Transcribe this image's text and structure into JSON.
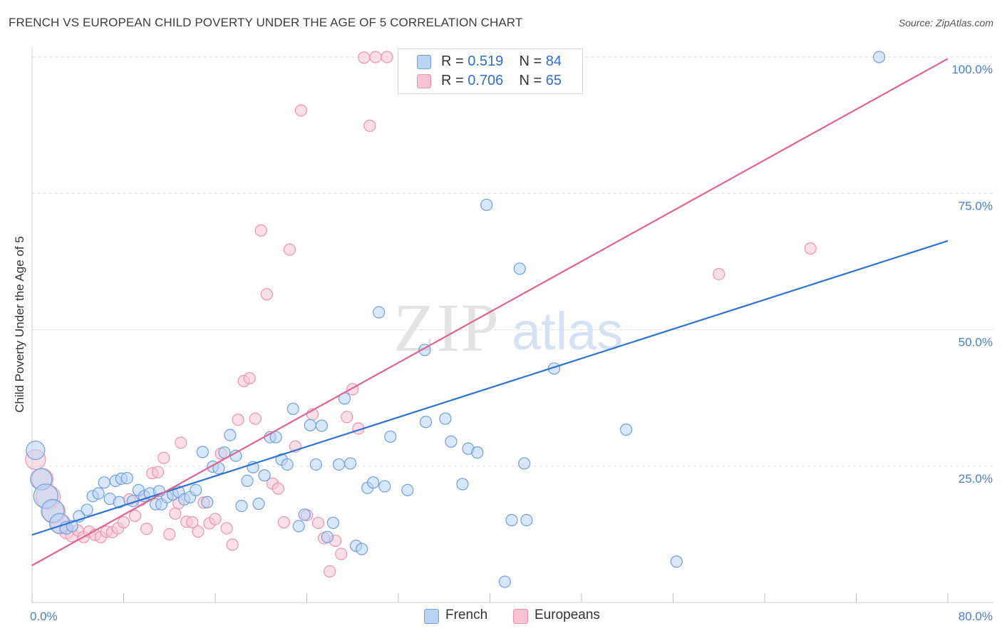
{
  "title": "FRENCH VS EUROPEAN CHILD POVERTY UNDER THE AGE OF 5 CORRELATION CHART",
  "source": "Source: ZipAtlas.com",
  "watermark": {
    "zip": "ZIP",
    "atlas": "atlas"
  },
  "legend": {
    "french": {
      "r_label": "R =",
      "r_value": "0.519",
      "n_label": "N =",
      "n_value": "84"
    },
    "europeans": {
      "r_label": "R =",
      "r_value": "0.706",
      "n_label": "N =",
      "n_value": "65"
    }
  },
  "colors": {
    "french_fill": "#b9d3f5",
    "french_stroke": "#6f9fe0",
    "french_line": "#2e72d2",
    "europeans_fill": "#f8c4d4",
    "europeans_stroke": "#ec93b0",
    "europeans_line": "#e2638e",
    "tick_label": "#4a7fcf",
    "grid": "#dcdcdc"
  },
  "chart_data": {
    "type": "scatter",
    "title": "FRENCH VS EUROPEAN CHILD POVERTY UNDER THE AGE OF 5 CORRELATION CHART",
    "xlabel": "",
    "ylabel": "Child Poverty Under the Age of 5",
    "xlim": [
      0,
      80
    ],
    "ylim": [
      0,
      100
    ],
    "x_tick_labels": [
      {
        "value": 0,
        "label": "0.0%"
      },
      {
        "value": 80,
        "label": "80.0%"
      }
    ],
    "y_tick_labels": [
      {
        "value": 25,
        "label": "25.0%"
      },
      {
        "value": 50,
        "label": "50.0%"
      },
      {
        "value": 75,
        "label": "75.0%"
      },
      {
        "value": 100,
        "label": "100.0%"
      }
    ],
    "grid": true,
    "legend_position": "top-center",
    "series": [
      {
        "name": "French",
        "r": 0.519,
        "n": 84,
        "trend": {
          "x": [
            0,
            80
          ],
          "y": [
            12.4,
            66.3
          ]
        },
        "points": [
          [
            0.3,
            27.9,
            13
          ],
          [
            0.8,
            22.6,
            15
          ],
          [
            1.2,
            19.5,
            17
          ],
          [
            1.8,
            16.8,
            16
          ],
          [
            2.4,
            14.5,
            14
          ],
          [
            3.0,
            13.7,
            9
          ],
          [
            3.5,
            14.0,
            8
          ],
          [
            4.1,
            15.8,
            8
          ],
          [
            4.8,
            17.0,
            8
          ],
          [
            5.3,
            19.5,
            8
          ],
          [
            5.8,
            20.0,
            8
          ],
          [
            6.3,
            22.0,
            8
          ],
          [
            6.8,
            19.0,
            8
          ],
          [
            7.3,
            22.3,
            8
          ],
          [
            7.8,
            22.7,
            8
          ],
          [
            8.3,
            22.8,
            8
          ],
          [
            8.8,
            18.6,
            8
          ],
          [
            9.3,
            20.6,
            8
          ],
          [
            9.8,
            19.5,
            8
          ],
          [
            10.3,
            20.0,
            8
          ],
          [
            10.8,
            18.0,
            8
          ],
          [
            11.3,
            18.0,
            8
          ],
          [
            11.8,
            19.3,
            8
          ],
          [
            12.3,
            19.8,
            8
          ],
          [
            12.8,
            20.3,
            8
          ],
          [
            13.3,
            18.9,
            8
          ],
          [
            13.8,
            19.3,
            8
          ],
          [
            14.3,
            20.6,
            8
          ],
          [
            14.9,
            27.6,
            8
          ],
          [
            15.3,
            18.4,
            8
          ],
          [
            15.8,
            24.9,
            8
          ],
          [
            16.3,
            24.6,
            8
          ],
          [
            16.8,
            27.5,
            8
          ],
          [
            17.3,
            30.7,
            8
          ],
          [
            17.8,
            26.9,
            8
          ],
          [
            18.3,
            17.7,
            8
          ],
          [
            18.8,
            22.3,
            8
          ],
          [
            19.3,
            24.8,
            8
          ],
          [
            19.8,
            18.1,
            8
          ],
          [
            20.3,
            23.3,
            8
          ],
          [
            20.8,
            30.3,
            8
          ],
          [
            21.3,
            30.3,
            8
          ],
          [
            21.8,
            26.2,
            8
          ],
          [
            22.3,
            25.3,
            8
          ],
          [
            22.8,
            35.5,
            8
          ],
          [
            23.3,
            14.0,
            8
          ],
          [
            23.8,
            16.1,
            8
          ],
          [
            24.3,
            32.5,
            8
          ],
          [
            24.8,
            25.3,
            8
          ],
          [
            25.3,
            32.4,
            8
          ],
          [
            25.8,
            12.0,
            8
          ],
          [
            26.3,
            14.6,
            8
          ],
          [
            26.8,
            25.3,
            8
          ],
          [
            27.3,
            37.4,
            8
          ],
          [
            27.8,
            25.5,
            8
          ],
          [
            28.3,
            10.4,
            8
          ],
          [
            28.8,
            9.8,
            8
          ],
          [
            29.3,
            21.0,
            8
          ],
          [
            29.8,
            22.0,
            8
          ],
          [
            30.3,
            53.2,
            8
          ],
          [
            30.8,
            21.3,
            8
          ],
          [
            31.3,
            30.4,
            8
          ],
          [
            32.8,
            20.6,
            8
          ],
          [
            34.3,
            46.3,
            8
          ],
          [
            34.4,
            33.1,
            8
          ],
          [
            36.1,
            33.7,
            8
          ],
          [
            36.6,
            29.5,
            8
          ],
          [
            37.6,
            21.7,
            8
          ],
          [
            38.1,
            28.2,
            8
          ],
          [
            38.9,
            27.5,
            8
          ],
          [
            39.1,
            100.0,
            8
          ],
          [
            39.7,
            72.9,
            8
          ],
          [
            41.3,
            3.8,
            8
          ],
          [
            41.9,
            15.1,
            8
          ],
          [
            42.6,
            61.2,
            8
          ],
          [
            43.0,
            25.5,
            8
          ],
          [
            43.2,
            15.1,
            8
          ],
          [
            45.6,
            42.9,
            8
          ],
          [
            46.2,
            100.0,
            8
          ],
          [
            51.9,
            31.7,
            8
          ],
          [
            56.3,
            7.5,
            8
          ],
          [
            74.0,
            100.0,
            8
          ],
          [
            7.6,
            18.4,
            8
          ],
          [
            11.1,
            20.4,
            8
          ]
        ]
      },
      {
        "name": "Europeans",
        "r": 0.706,
        "n": 65,
        "trend": {
          "x": [
            0,
            80
          ],
          "y": [
            6.8,
            99.7
          ]
        },
        "points": [
          [
            0.3,
            26.2,
            14
          ],
          [
            0.9,
            22.6,
            15
          ],
          [
            1.4,
            19.3,
            17
          ],
          [
            1.9,
            16.6,
            16
          ],
          [
            2.5,
            14.4,
            14
          ],
          [
            3.0,
            13.0,
            10
          ],
          [
            3.5,
            12.3,
            9
          ],
          [
            4.0,
            13.2,
            8
          ],
          [
            4.5,
            12.0,
            8
          ],
          [
            5.0,
            13.0,
            8
          ],
          [
            5.5,
            12.4,
            8
          ],
          [
            6.0,
            12.0,
            8
          ],
          [
            6.5,
            13.0,
            8
          ],
          [
            7.0,
            12.9,
            8
          ],
          [
            7.5,
            13.6,
            8
          ],
          [
            8.0,
            14.7,
            8
          ],
          [
            8.5,
            18.9,
            8
          ],
          [
            9.0,
            15.9,
            8
          ],
          [
            9.5,
            18.8,
            8
          ],
          [
            10.0,
            13.5,
            8
          ],
          [
            10.5,
            23.7,
            8
          ],
          [
            11.0,
            23.9,
            8
          ],
          [
            11.5,
            26.5,
            8
          ],
          [
            12.0,
            12.5,
            8
          ],
          [
            12.5,
            16.3,
            8
          ],
          [
            13.0,
            29.3,
            8
          ],
          [
            13.5,
            14.8,
            8
          ],
          [
            14.0,
            14.7,
            8
          ],
          [
            14.5,
            13.0,
            8
          ],
          [
            15.0,
            18.3,
            8
          ],
          [
            15.5,
            14.5,
            8
          ],
          [
            16.0,
            15.3,
            8
          ],
          [
            16.5,
            27.3,
            8
          ],
          [
            17.0,
            13.6,
            8
          ],
          [
            17.5,
            10.6,
            8
          ],
          [
            18.0,
            33.5,
            8
          ],
          [
            18.5,
            40.6,
            8
          ],
          [
            19.0,
            41.1,
            8
          ],
          [
            19.5,
            33.7,
            8
          ],
          [
            20.0,
            68.2,
            8
          ],
          [
            20.5,
            56.5,
            8
          ],
          [
            21.0,
            21.8,
            8
          ],
          [
            21.5,
            20.9,
            8
          ],
          [
            22.0,
            14.7,
            8
          ],
          [
            22.5,
            64.7,
            8
          ],
          [
            23.0,
            28.6,
            8
          ],
          [
            23.5,
            90.2,
            8
          ],
          [
            24.0,
            16.0,
            8
          ],
          [
            24.5,
            34.5,
            8
          ],
          [
            25.0,
            14.6,
            8
          ],
          [
            25.5,
            11.8,
            8
          ],
          [
            26.0,
            5.7,
            8
          ],
          [
            26.5,
            11.3,
            8
          ],
          [
            27.0,
            8.9,
            8
          ],
          [
            27.5,
            34.0,
            8
          ],
          [
            28.0,
            39.1,
            8
          ],
          [
            28.5,
            31.9,
            8
          ],
          [
            29.0,
            99.9,
            8
          ],
          [
            29.5,
            87.4,
            8
          ],
          [
            30.0,
            100.0,
            8
          ],
          [
            31.0,
            100.0,
            8
          ],
          [
            32.5,
            100.0,
            8
          ],
          [
            60.0,
            60.2,
            8
          ],
          [
            68.0,
            64.9,
            8
          ],
          [
            12.8,
            18.2,
            8
          ]
        ]
      }
    ]
  }
}
